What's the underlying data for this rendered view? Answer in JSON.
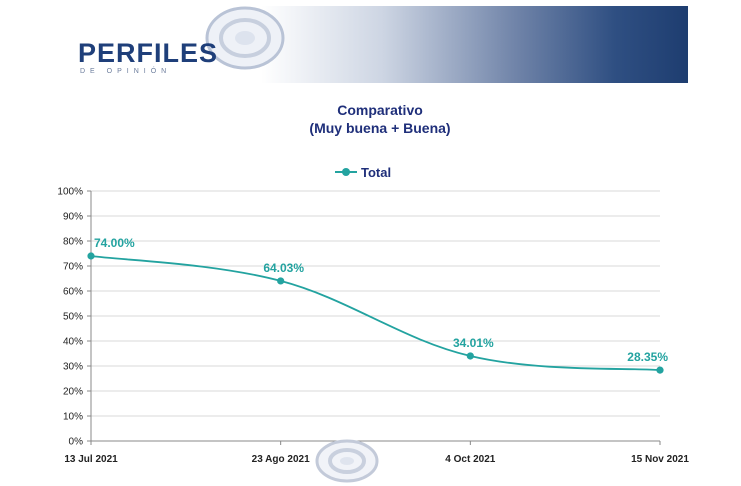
{
  "header": {
    "logo_text": "PERFILES",
    "logo_subtext": "DE OPINIÓN",
    "logo_icon": "target-ellipse-icon"
  },
  "chart_data": {
    "type": "line",
    "title": "Comparativo",
    "subtitle": "(Muy buena + Buena)",
    "categories": [
      "13 Jul 2021",
      "23 Ago 2021",
      "4 Oct 2021",
      "15 Nov 2021"
    ],
    "series": [
      {
        "name": "Total",
        "values": [
          74.0,
          64.03,
          34.01,
          28.35
        ],
        "labels": [
          "74.00%",
          "64.03%",
          "34.01%",
          "28.35%"
        ],
        "color": "#23a3a0"
      }
    ],
    "yticks": [
      "0%",
      "10%",
      "20%",
      "30%",
      "40%",
      "50%",
      "60%",
      "70%",
      "80%",
      "90%",
      "100%"
    ],
    "ylim": [
      0,
      100
    ],
    "grid": true,
    "legend_position": "top",
    "colors": {
      "title": "#1f2f7a",
      "axis_text": "#222222",
      "grid": "#d9d9d9"
    }
  }
}
